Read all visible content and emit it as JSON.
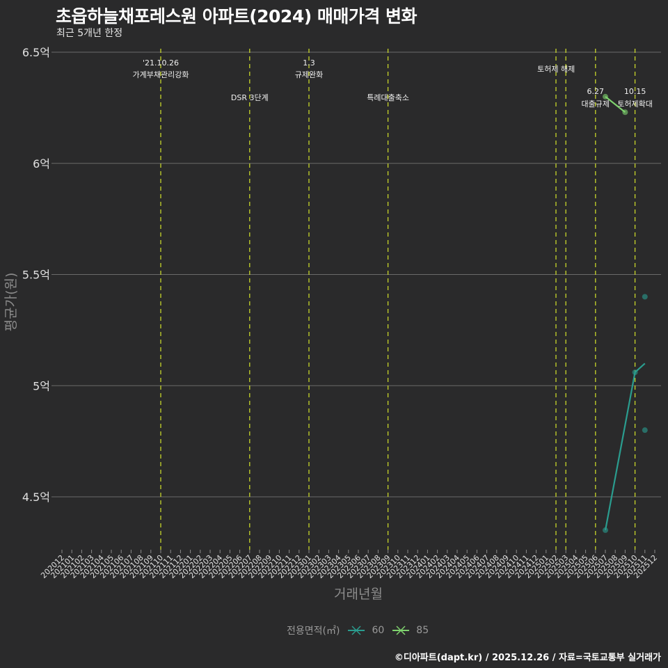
{
  "header": {
    "title": "초읍하늘채포레스원 아파트(2024) 매매가격 변화",
    "subtitle": "최근 5개년 한정"
  },
  "caption": "©디아파트(dapt.kr) / 2025.12.26 / 자료=국토교통부 실거래가",
  "legend": {
    "title": "전용면적(㎡)",
    "items": [
      {
        "label": "60",
        "color": "#2a9d8f"
      },
      {
        "label": "85",
        "color": "#7fd36e"
      }
    ]
  },
  "colors": {
    "background": "#2a2a2b",
    "grid": "#6b6b6b",
    "event_line": "#c8d62a",
    "series_60": "#2a9d8f",
    "series_85": "#7fd36e"
  },
  "chart_data": {
    "type": "line",
    "title": "초읍하늘채포레스원 아파트(2024) 매매가격 변화",
    "subtitle": "최근 5개년 한정",
    "xlabel": "거래년월",
    "ylabel": "평균가(원)",
    "ylim": [
      4.25,
      6.5
    ],
    "yticks": [
      {
        "value": 4.5,
        "label": "4.5억"
      },
      {
        "value": 5.0,
        "label": "5억"
      },
      {
        "value": 5.5,
        "label": "5.5억"
      },
      {
        "value": 6.0,
        "label": "6억"
      },
      {
        "value": 6.5,
        "label": "6.5억"
      }
    ],
    "grid": true,
    "legend_position": "bottom",
    "categories": [
      "202012",
      "202101",
      "202102",
      "202103",
      "202104",
      "202105",
      "202106",
      "202107",
      "202108",
      "202109",
      "202110",
      "202111",
      "202112",
      "202201",
      "202202",
      "202203",
      "202204",
      "202205",
      "202206",
      "202207",
      "202208",
      "202209",
      "202210",
      "202211",
      "202212",
      "202301",
      "202302",
      "202303",
      "202304",
      "202305",
      "202306",
      "202307",
      "202308",
      "202309",
      "202310",
      "202311",
      "202312",
      "202401",
      "202402",
      "202403",
      "202404",
      "202405",
      "202406",
      "202407",
      "202408",
      "202409",
      "202410",
      "202411",
      "202412",
      "202501",
      "202502",
      "202503",
      "202504",
      "202505",
      "202506",
      "202507",
      "202508",
      "202509",
      "202510",
      "202511",
      "202512"
    ],
    "series": [
      {
        "name": "60",
        "color": "#2a9d8f",
        "line": [
          {
            "x": "202507",
            "y": 4.35
          },
          {
            "x": "202510",
            "y": 5.06
          },
          {
            "x": "202511",
            "y": 5.1
          }
        ],
        "points": [
          {
            "x": "202507",
            "y": 4.35
          },
          {
            "x": "202510",
            "y": 5.06
          },
          {
            "x": "202511",
            "y": 5.4
          },
          {
            "x": "202511",
            "y": 4.8
          }
        ]
      },
      {
        "name": "85",
        "color": "#7fd36e",
        "line": [
          {
            "x": "202507",
            "y": 6.3
          },
          {
            "x": "202509",
            "y": 6.23
          }
        ],
        "points": [
          {
            "x": "202507",
            "y": 6.3
          },
          {
            "x": "202509",
            "y": 6.23
          }
        ]
      }
    ],
    "annotations": [
      {
        "x": "202110",
        "date": "'21.10.26",
        "label": "가계부채관리강화",
        "row": 0
      },
      {
        "x": "202207",
        "date": "",
        "label": "DSR 3단계",
        "row": 1
      },
      {
        "x": "202301",
        "date": "1.3",
        "label": "규제완화",
        "row": 0
      },
      {
        "x": "202309",
        "date": "",
        "label": "특례대출축소",
        "row": 1
      },
      {
        "x": "202502",
        "date": "",
        "label": "",
        "row": -1
      },
      {
        "x": "202503",
        "date": "",
        "label": "토허제 해제",
        "row": 2
      },
      {
        "x": "202506",
        "date": "6.27",
        "label": "대출규제",
        "row": 3
      },
      {
        "x": "202510",
        "date": "10.15",
        "label": "토허제확대",
        "row": 3
      }
    ]
  }
}
